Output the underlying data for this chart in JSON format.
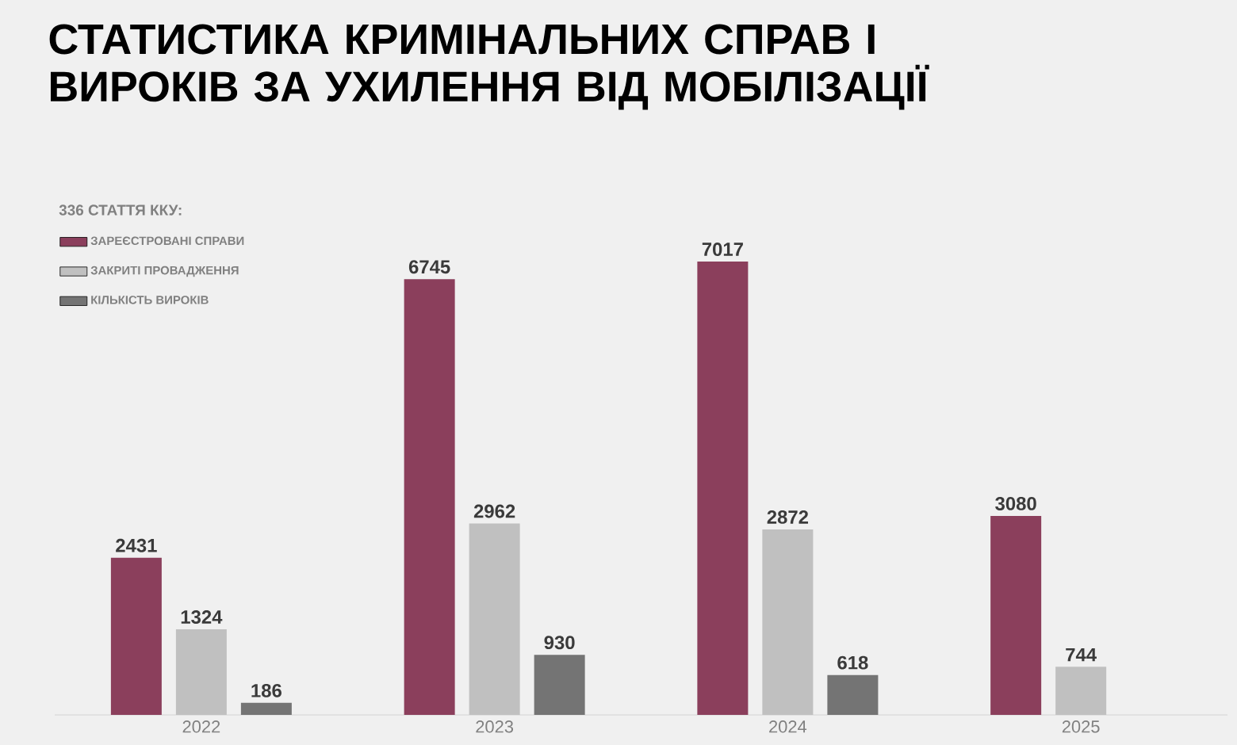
{
  "chart_data": {
    "type": "bar",
    "title": "СТАТИСТИКА КРИМІНАЛЬНИХ СПРАВ І ВИРОКІВ ЗА УХИЛЕННЯ ВІД МОБІЛІЗАЦІЇ",
    "legend_title": "336 СТАТТЯ ККУ:",
    "categories": [
      "2022",
      "2023",
      "2024",
      "2025"
    ],
    "series": [
      {
        "name": "ЗАРЕЄСТРОВАНІ СПРАВИ",
        "color": "#8b3f5c",
        "values": [
          2431,
          6745,
          7017,
          3080
        ]
      },
      {
        "name": "ЗАКРИТІ ПРОВАДЖЕННЯ",
        "color": "#c0c0c0",
        "values": [
          1324,
          2962,
          2872,
          744
        ]
      },
      {
        "name": "КІЛЬКІСТЬ ВИРОКІВ",
        "color": "#747474",
        "values": [
          186,
          930,
          618,
          null
        ]
      }
    ],
    "data_labels": true,
    "legend": "top left"
  }
}
